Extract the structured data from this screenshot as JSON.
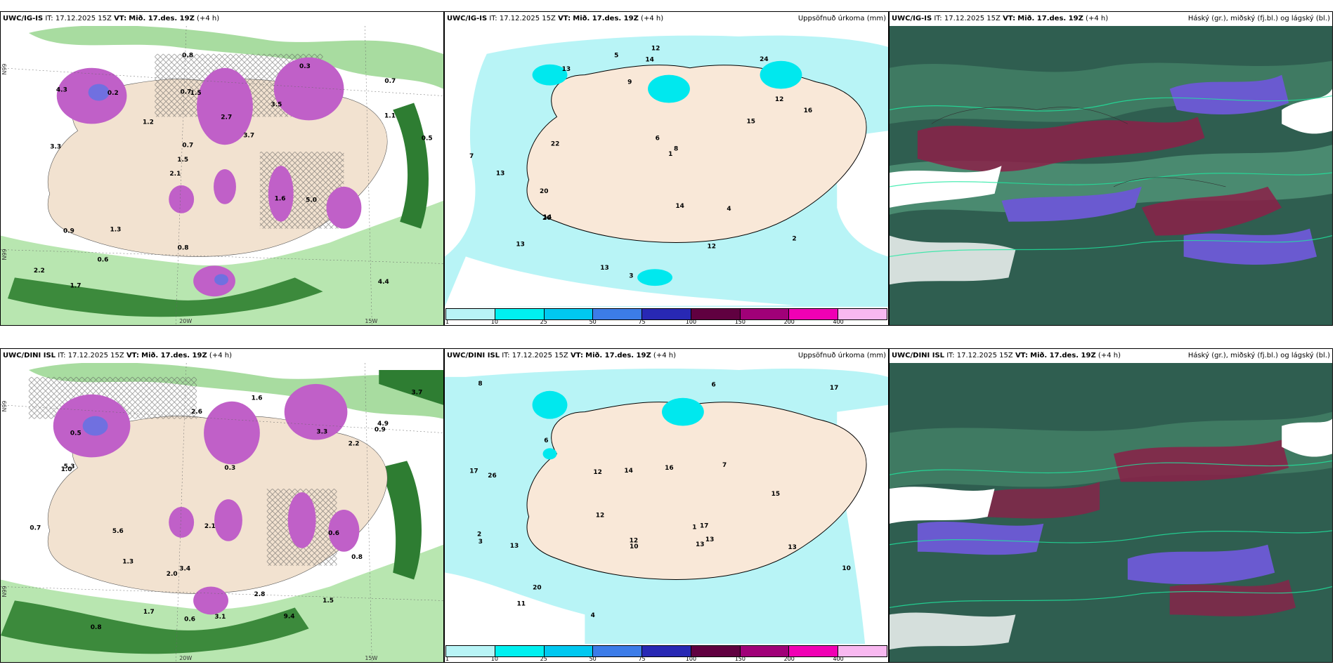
{
  "panels": [
    {
      "id": "igis-precip-type",
      "model": "UWC/IG-IS",
      "it_label": "IT:",
      "it_value": "17.12.2025 15Z",
      "vt_label": "VT:",
      "vt_value": "Mið. 17.des. 19Z",
      "lead": "(+4 h)",
      "right_title": "",
      "lat_labels": [
        "N99",
        "N99"
      ],
      "lon_labels": [
        "20W",
        "15W"
      ],
      "values": [
        "4.4",
        "3.3",
        "0.7",
        "2.1",
        "3.5",
        "1.7",
        "0.7",
        "2.7",
        "0.9",
        "1.2",
        "2.2",
        "0.6",
        "1.5",
        "3.7",
        "5.0",
        "4.3",
        "0.8",
        "0.5",
        "1.6",
        "1.1",
        "1.5",
        "0.8",
        "0.7",
        "0.2",
        "0.3",
        "1.3"
      ]
    },
    {
      "id": "igis-accum",
      "model": "UWC/IG-IS",
      "it_label": "IT:",
      "it_value": "17.12.2025 15Z",
      "vt_label": "VT:",
      "vt_value": "Mið. 17.des. 19Z",
      "lead": "(+4 h)",
      "right_title": "Uppsöfnuð úrkoma (mm)",
      "values": [
        "13",
        "24",
        "13",
        "12",
        "14",
        "22",
        "20",
        "14",
        "16",
        "15",
        "13",
        "12",
        "4",
        "1",
        "3",
        "5",
        "2",
        "7",
        "20",
        "13",
        "12",
        "14",
        "9",
        "8",
        "6"
      ],
      "colorbar": [
        "1",
        "10",
        "25",
        "50",
        "75",
        "100",
        "150",
        "200",
        "400"
      ]
    },
    {
      "id": "igis-cloud",
      "model": "UWC/IG-IS",
      "it_label": "IT:",
      "it_value": "17.12.2025 15Z",
      "vt_label": "VT:",
      "vt_value": "Mið. 17.des. 19Z",
      "lead": "(+4 h)",
      "right_title": "Háský (gr.), miðský (fj.bl.) og lágský (bl.)"
    },
    {
      "id": "dini-precip-type",
      "model": "UWC/DINI ISL",
      "it_label": "IT:",
      "it_value": "17.12.2025 15Z",
      "vt_label": "VT:",
      "vt_value": "Mið. 17.des. 19Z",
      "lead": "(+4 h)",
      "right_title": "",
      "lat_labels": [
        "N99",
        "N99"
      ],
      "lon_labels": [
        "20W",
        "15W"
      ],
      "values": [
        "2.0",
        "3.4",
        "1.6",
        "0.8",
        "2.6",
        "1.7",
        "3.7",
        "4.9",
        "2.8",
        "1.0",
        "0.5",
        "3.3",
        "0.9",
        "2.1",
        "5.3",
        "9.4",
        "5.6",
        "0.7",
        "1.5",
        "0.6",
        "2.2",
        "0.3",
        "0.6",
        "0.8",
        "1.3",
        "3.1"
      ]
    },
    {
      "id": "dini-accum",
      "model": "UWC/DINI ISL",
      "it_label": "IT:",
      "it_value": "17.12.2025 15Z",
      "vt_label": "VT:",
      "vt_value": "Mið. 17.des. 19Z",
      "lead": "(+4 h)",
      "right_title": "Uppsöfnuð úrkoma (mm)",
      "values": [
        "13",
        "26",
        "17",
        "13",
        "12",
        "14",
        "15",
        "17",
        "12",
        "16",
        "20",
        "17",
        "13",
        "12",
        "13",
        "10",
        "7",
        "3",
        "4",
        "6",
        "2",
        "1",
        "10",
        "11",
        "8",
        "6"
      ],
      "colorbar": [
        "1",
        "10",
        "25",
        "50",
        "75",
        "100",
        "150",
        "200",
        "400"
      ]
    },
    {
      "id": "dini-cloud",
      "model": "UWC/DINI ISL",
      "it_label": "IT:",
      "it_value": "17.12.2025 15Z",
      "vt_label": "VT:",
      "vt_value": "Mið. 17.des. 19Z",
      "lead": "(+4 h)",
      "right_title": "Háský (gr.), miðský (fj.bl.) og lágský (bl.)"
    }
  ],
  "colorbar_colors": [
    "#b8f4f6",
    "#00f0f0",
    "#00c8f0",
    "#3c7ce8",
    "#2828b4",
    "#600040",
    "#a00078",
    "#f000b4",
    "#f8b8f0"
  ]
}
